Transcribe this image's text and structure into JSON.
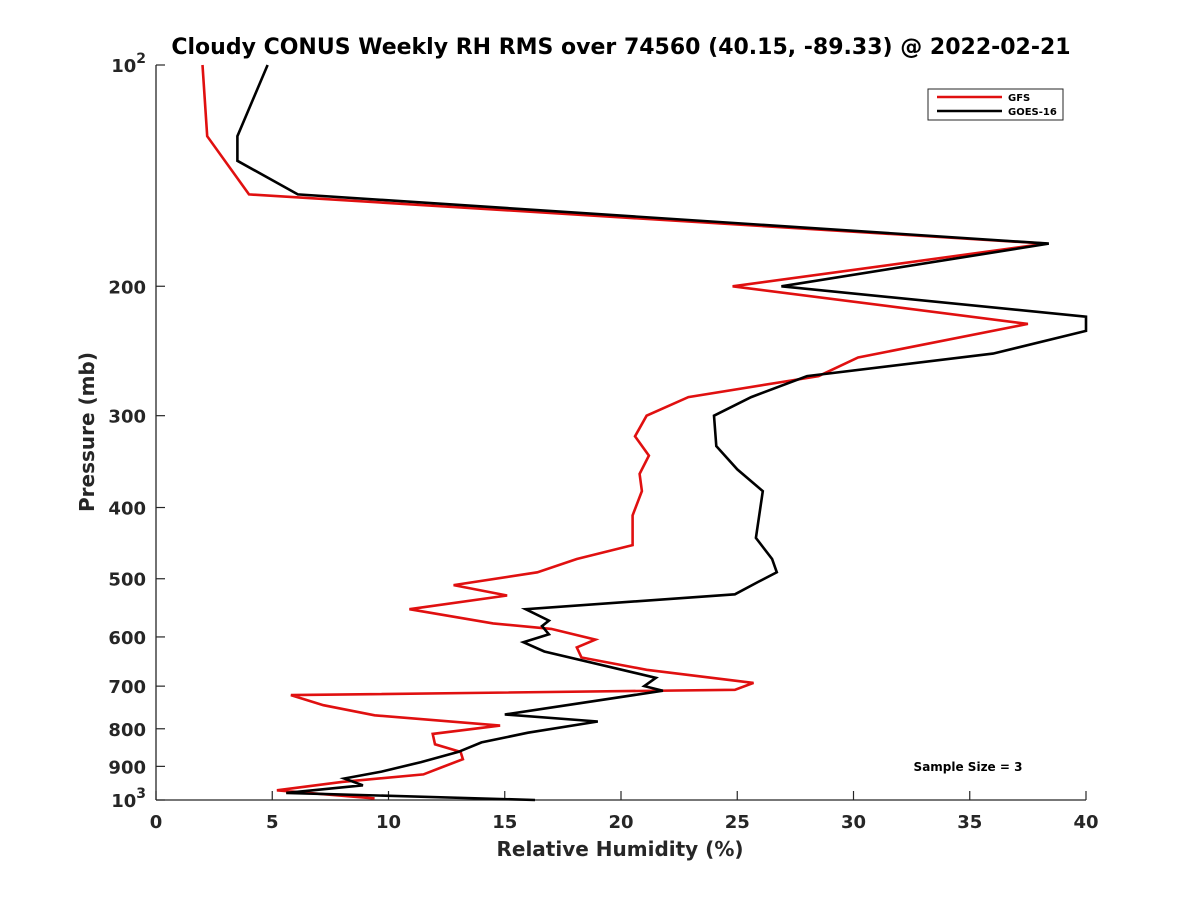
{
  "chart_data": {
    "type": "line",
    "title": "Cloudy CONUS Weekly RH RMS over 74560 (40.15, -89.33) @ 2022-02-21",
    "xlabel": "Relative Humidity (%)",
    "ylabel": "Pressure (mb)",
    "xlim": [
      0,
      40
    ],
    "ylim": [
      100,
      1000
    ],
    "y_scale": "log",
    "y_reversed": true,
    "x_ticks": [
      "0",
      "5",
      "10",
      "15",
      "20",
      "25",
      "30",
      "35",
      "40"
    ],
    "y_ticks": [
      {
        "value": 100,
        "base": "10",
        "exp": "2",
        "label": ""
      },
      {
        "value": 200,
        "label": "200"
      },
      {
        "value": 300,
        "label": "300"
      },
      {
        "value": 400,
        "label": "400"
      },
      {
        "value": 500,
        "label": "500"
      },
      {
        "value": 600,
        "label": "600"
      },
      {
        "value": 700,
        "label": "700"
      },
      {
        "value": 800,
        "label": "800"
      },
      {
        "value": 900,
        "label": "900"
      },
      {
        "value": 1000,
        "base": "10",
        "exp": "3",
        "label": ""
      }
    ],
    "grid": false,
    "legend_position": "top-right",
    "annotation": "Sample Size = 3",
    "series": [
      {
        "name": "GFS",
        "color": "#e01010",
        "points": [
          [
            2.0,
            100
          ],
          [
            2.2,
            125
          ],
          [
            4.0,
            150
          ],
          [
            38.3,
            175
          ],
          [
            24.8,
            200
          ],
          [
            37.5,
            225
          ],
          [
            30.2,
            250
          ],
          [
            28.5,
            265
          ],
          [
            22.9,
            283
          ],
          [
            21.1,
            300
          ],
          [
            20.6,
            320
          ],
          [
            21.2,
            340
          ],
          [
            20.8,
            360
          ],
          [
            20.9,
            380
          ],
          [
            20.5,
            410
          ],
          [
            20.5,
            450
          ],
          [
            18.1,
            470
          ],
          [
            16.4,
            490
          ],
          [
            12.8,
            510
          ],
          [
            15.1,
            527
          ],
          [
            10.9,
            550
          ],
          [
            14.5,
            575
          ],
          [
            17.0,
            585
          ],
          [
            18.9,
            605
          ],
          [
            18.1,
            620
          ],
          [
            18.3,
            640
          ],
          [
            21.1,
            665
          ],
          [
            25.7,
            693
          ],
          [
            24.9,
            708
          ],
          [
            5.8,
            720
          ],
          [
            7.2,
            743
          ],
          [
            9.4,
            767
          ],
          [
            14.8,
            792
          ],
          [
            11.9,
            813
          ],
          [
            12.0,
            840
          ],
          [
            13.1,
            860
          ],
          [
            13.2,
            880
          ],
          [
            12.2,
            905
          ],
          [
            11.5,
            923
          ],
          [
            8.0,
            945
          ],
          [
            5.2,
            970
          ],
          [
            9.4,
            995
          ]
        ]
      },
      {
        "name": "GOES-16",
        "color": "#000000",
        "points": [
          [
            4.8,
            100
          ],
          [
            3.5,
            125
          ],
          [
            3.5,
            135
          ],
          [
            6.1,
            150
          ],
          [
            38.4,
            175
          ],
          [
            26.9,
            200
          ],
          [
            40.0,
            220
          ],
          [
            40.0,
            230
          ],
          [
            36.0,
            247
          ],
          [
            28.0,
            265
          ],
          [
            25.6,
            283
          ],
          [
            24.0,
            300
          ],
          [
            24.1,
            330
          ],
          [
            25.0,
            355
          ],
          [
            26.1,
            380
          ],
          [
            25.8,
            440
          ],
          [
            26.5,
            470
          ],
          [
            26.7,
            490
          ],
          [
            25.9,
            505
          ],
          [
            24.9,
            525
          ],
          [
            15.9,
            550
          ],
          [
            16.9,
            570
          ],
          [
            16.6,
            580
          ],
          [
            16.9,
            595
          ],
          [
            15.8,
            610
          ],
          [
            16.7,
            628
          ],
          [
            21.5,
            682
          ],
          [
            21.0,
            700
          ],
          [
            21.8,
            710
          ],
          [
            15.0,
            765
          ],
          [
            19.0,
            782
          ],
          [
            16.0,
            810
          ],
          [
            14.0,
            835
          ],
          [
            13.0,
            860
          ],
          [
            11.4,
            888
          ],
          [
            9.7,
            915
          ],
          [
            8.1,
            935
          ],
          [
            8.9,
            955
          ],
          [
            5.6,
            978
          ],
          [
            16.3,
            1000
          ]
        ]
      }
    ]
  }
}
